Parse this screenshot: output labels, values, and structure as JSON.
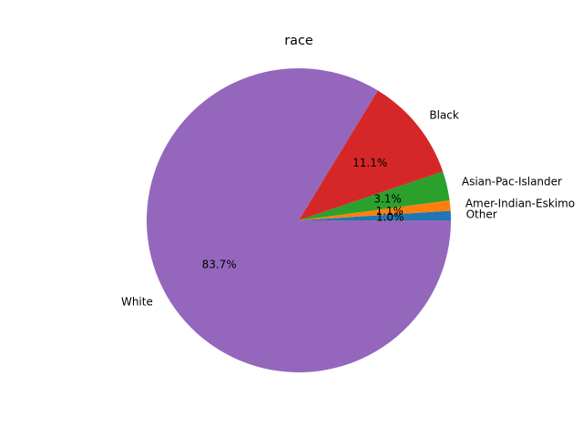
{
  "chart_data": {
    "type": "pie",
    "title": "race",
    "start_angle_deg": 0,
    "direction": "counterclockwise",
    "slices": [
      {
        "label": "Other",
        "percent": 1.0,
        "pct_text": "1.0%",
        "color": "#1f77b4"
      },
      {
        "label": "Amer-Indian-Eskimo",
        "percent": 1.1,
        "pct_text": "1.1%",
        "color": "#ff7f0e"
      },
      {
        "label": "Asian-Pac-Islander",
        "percent": 3.1,
        "pct_text": "3.1%",
        "color": "#2ca02c"
      },
      {
        "label": "Black",
        "percent": 11.1,
        "pct_text": "11.1%",
        "color": "#d62728"
      },
      {
        "label": "White",
        "percent": 83.7,
        "pct_text": "83.7%",
        "color": "#9467bd"
      }
    ]
  }
}
